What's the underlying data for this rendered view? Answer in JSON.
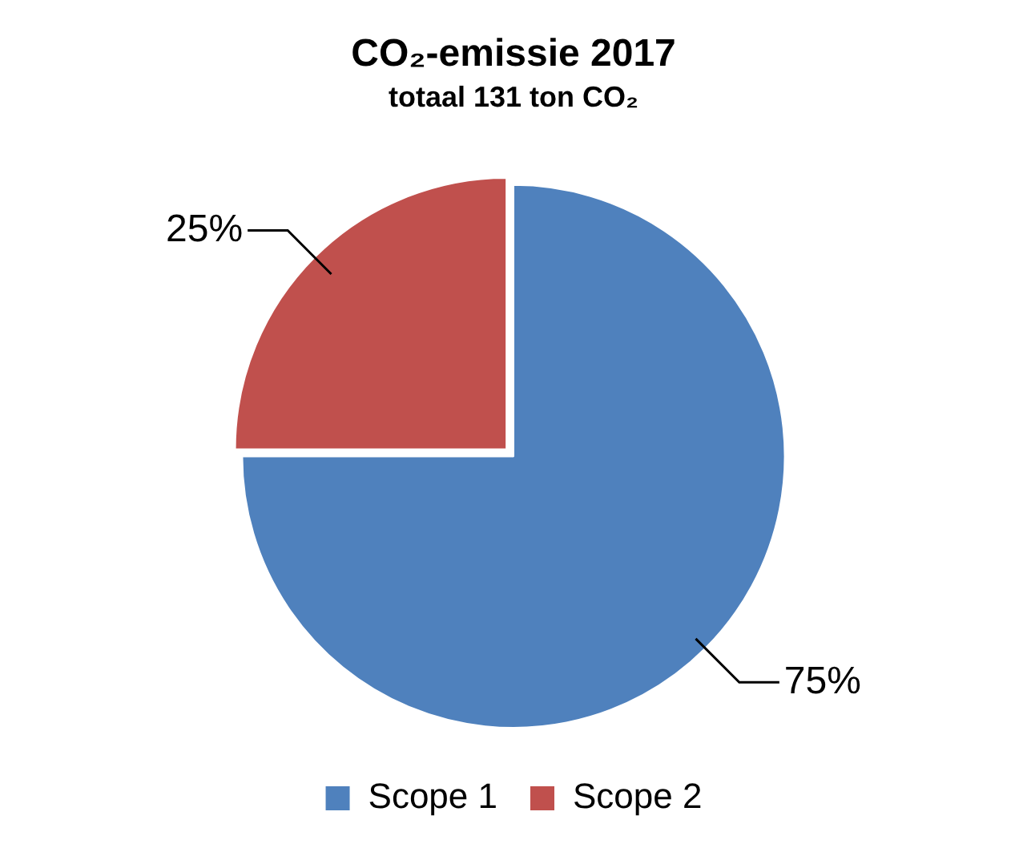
{
  "chart_data": {
    "type": "pie",
    "title": "CO₂-emissie 2017",
    "subtitle": "totaal 131 ton CO₂",
    "categories": [
      "Scope 1",
      "Scope 2"
    ],
    "values": [
      75,
      25
    ],
    "colors": [
      "#4f81bd",
      "#c0504d"
    ],
    "value_labels": [
      "75%",
      "25%"
    ],
    "legend": "bottom"
  }
}
